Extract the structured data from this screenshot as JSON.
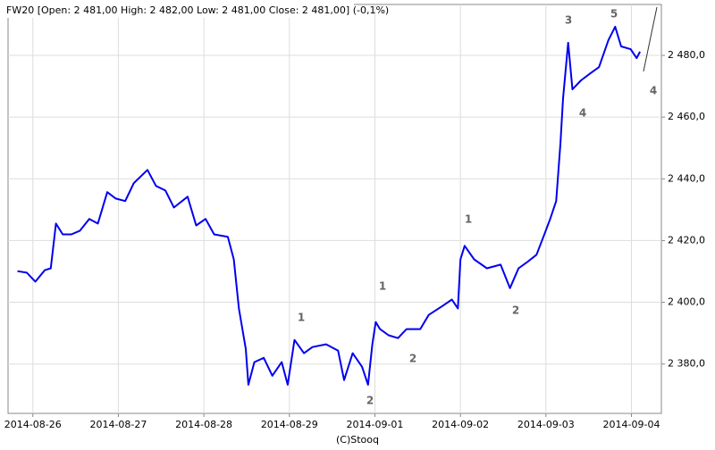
{
  "chart_data": {
    "type": "line",
    "title": "FW20 [Open: 2 481,00  High: 2 482,00  Low: 2 481,00  Close: 2 481,00] (-0,1%)",
    "footer": "(C)Stooq",
    "x": [
      -0.18,
      -0.07,
      0.03,
      0.14,
      0.21,
      0.27,
      0.35,
      0.45,
      0.55,
      0.66,
      0.76,
      0.87,
      0.97,
      1.08,
      1.18,
      1.34,
      1.44,
      1.55,
      1.65,
      1.81,
      1.91,
      2.02,
      2.12,
      2.28,
      2.35,
      2.41,
      2.49,
      2.52,
      2.59,
      2.7,
      2.8,
      2.91,
      2.98,
      3.06,
      3.17,
      3.27,
      3.43,
      3.57,
      3.64,
      3.74,
      3.85,
      3.92,
      3.97,
      4.01,
      4.06,
      4.16,
      4.27,
      4.37,
      4.53,
      4.63,
      4.79,
      4.9,
      4.97,
      5.0,
      5.05,
      5.16,
      5.31,
      5.47,
      5.58,
      5.68,
      5.78,
      5.89,
      5.97,
      6.05,
      6.12,
      6.17,
      6.2,
      6.26,
      6.31,
      6.41,
      6.52,
      6.62,
      6.73,
      6.81,
      6.88,
      6.99,
      7.06,
      7.1
    ],
    "series": [
      {
        "name": "FW20",
        "color": "#0000ee",
        "values": [
          2410.1,
          2409.6,
          2406.7,
          2410.4,
          2411.0,
          2425.5,
          2422.0,
          2422.0,
          2423.2,
          2427.0,
          2425.5,
          2435.7,
          2433.6,
          2432.8,
          2438.6,
          2442.9,
          2437.7,
          2436.2,
          2430.7,
          2434.2,
          2424.9,
          2427.0,
          2422.0,
          2421.2,
          2413.9,
          2398.0,
          2384.9,
          2373.3,
          2380.6,
          2382.0,
          2376.2,
          2380.6,
          2373.3,
          2387.8,
          2383.5,
          2385.5,
          2386.4,
          2384.3,
          2374.8,
          2383.5,
          2379.1,
          2373.3,
          2386.4,
          2393.6,
          2391.3,
          2389.3,
          2388.4,
          2391.3,
          2391.3,
          2395.9,
          2398.8,
          2400.9,
          2398.0,
          2413.9,
          2418.3,
          2413.9,
          2411.0,
          2412.2,
          2404.6,
          2411.0,
          2413.0,
          2415.4,
          2421.2,
          2427.0,
          2432.8,
          2451.6,
          2466.1,
          2484.1,
          2469.0,
          2471.9,
          2474.2,
          2476.2,
          2484.9,
          2489.3,
          2482.9,
          2482.0,
          2479.1,
          2481.2
        ]
      }
    ],
    "xlim": [
      -0.29,
      7.35
    ],
    "xticks": [
      {
        "value": 0,
        "label": "2014-08-26"
      },
      {
        "value": 1,
        "label": "2014-08-27"
      },
      {
        "value": 2,
        "label": "2014-08-28"
      },
      {
        "value": 3,
        "label": "2014-08-29"
      },
      {
        "value": 4,
        "label": "2014-09-01"
      },
      {
        "value": 5,
        "label": "2014-09-02"
      },
      {
        "value": 6,
        "label": "2014-09-03"
      },
      {
        "value": 7,
        "label": "2014-09-04"
      }
    ],
    "ylim": [
      2364,
      2496.5
    ],
    "yticks": [
      {
        "value": 2380,
        "label": "2 380,0"
      },
      {
        "value": 2400,
        "label": "2 400,0"
      },
      {
        "value": 2420,
        "label": "2 420,0"
      },
      {
        "value": 2440,
        "label": "2 440,0"
      },
      {
        "value": 2460,
        "label": "2 460,0"
      },
      {
        "value": 2480,
        "label": "2 480,0"
      }
    ],
    "grid": true,
    "annotations": [
      "1",
      "2",
      "1",
      "2",
      "1",
      "2",
      "3",
      "4",
      "5",
      "4"
    ]
  }
}
